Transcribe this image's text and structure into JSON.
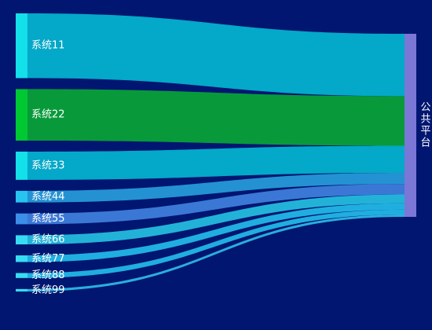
{
  "chart_data": {
    "type": "sankey",
    "target": {
      "name": "公共平台",
      "color": "#7b77d6"
    },
    "flows": [
      {
        "source": "系统11",
        "value": 78,
        "node_color": "#13e0e8",
        "link_color": "#04a8c8"
      },
      {
        "source": "系统22",
        "value": 62,
        "node_color": "#00c832",
        "link_color": "#089a3a"
      },
      {
        "source": "系统33",
        "value": 34,
        "node_color": "#13e0e8",
        "link_color": "#04a8c8"
      },
      {
        "source": "系统44",
        "value": 14,
        "node_color": "#27c4f0",
        "link_color": "#2492d2"
      },
      {
        "source": "系统55",
        "value": 13,
        "node_color": "#3c8ee8",
        "link_color": "#3b78d6"
      },
      {
        "source": "系统66",
        "value": 11,
        "node_color": "#37dcf2",
        "link_color": "#22b2d8"
      },
      {
        "source": "系统77",
        "value": 8,
        "node_color": "#37dcf2",
        "link_color": "#20aee0"
      },
      {
        "source": "系统88",
        "value": 6,
        "node_color": "#37dcf2",
        "link_color": "#20aee0"
      },
      {
        "source": "系统99",
        "value": 3,
        "node_color": "#37dcf2",
        "link_color": "#2aaedc"
      }
    ]
  }
}
